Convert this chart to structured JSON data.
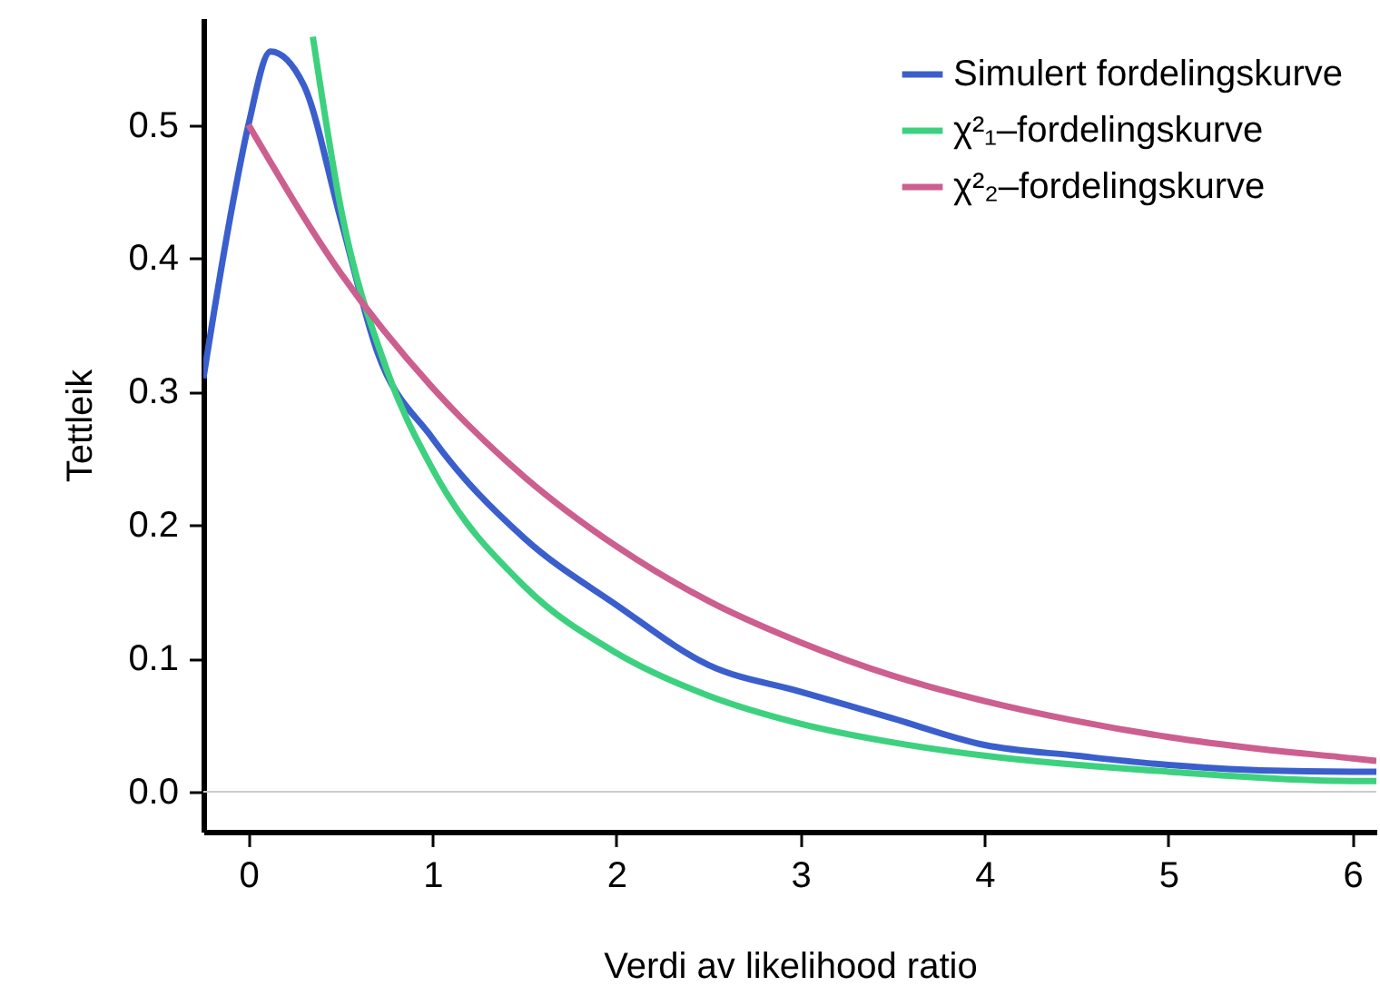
{
  "chart_data": {
    "type": "line",
    "xlabel": "Verdi av likelihood ratio",
    "ylabel": "Tettleik",
    "xlim": [
      -0.245,
      6.13
    ],
    "ylim": [
      -0.03,
      0.58
    ],
    "xticks": [
      0,
      1,
      2,
      3,
      4,
      5,
      6
    ],
    "yticks": [
      {
        "value": 0,
        "label": "0.0"
      },
      0.1,
      0.2,
      0.3,
      0.4,
      0.5
    ],
    "grid": false,
    "legend": "top right",
    "marker": "none",
    "line_style": "solid",
    "ref_lines": [
      {
        "axis": "y",
        "value": 0,
        "color": "#cccccc"
      }
    ],
    "series": [
      {
        "name": "Simulert fordelingskurve",
        "color": "#3a5fcd",
        "x": [
          -0.245,
          -0.1,
          0,
          0.12,
          0.3,
          0.5,
          0.7,
          1,
          1.5,
          2,
          2.5,
          3,
          3.5,
          4,
          4.5,
          5,
          5.5,
          6,
          6.13
        ],
        "values": [
          0.31,
          0.43,
          0.5,
          0.555,
          0.53,
          0.43,
          0.33,
          0.265,
          0.19,
          0.14,
          0.095,
          0.075,
          0.055,
          0.035,
          0.027,
          0.02,
          0.016,
          0.015,
          0.015
        ]
      },
      {
        "name": "χ²₁–fordelingskurve",
        "color": "#3dd17f",
        "x": [
          0.35,
          0.5,
          0.75,
          1,
          1.5,
          2,
          2.5,
          3,
          3.5,
          4,
          5,
          6,
          6.13
        ],
        "values": [
          0.566,
          0.439,
          0.317,
          0.242,
          0.154,
          0.104,
          0.072,
          0.051,
          0.037,
          0.027,
          0.015,
          0.008,
          0.008
        ]
      },
      {
        "name": "χ²₂–fordelingskurve",
        "color": "#cc5f8f",
        "x": [
          0,
          0.5,
          1,
          1.5,
          2,
          2.5,
          3,
          3.5,
          4,
          4.5,
          5,
          5.5,
          6,
          6.13
        ],
        "values": [
          0.5,
          0.389,
          0.303,
          0.236,
          0.184,
          0.143,
          0.112,
          0.087,
          0.068,
          0.053,
          0.041,
          0.032,
          0.025,
          0.023
        ]
      }
    ]
  }
}
